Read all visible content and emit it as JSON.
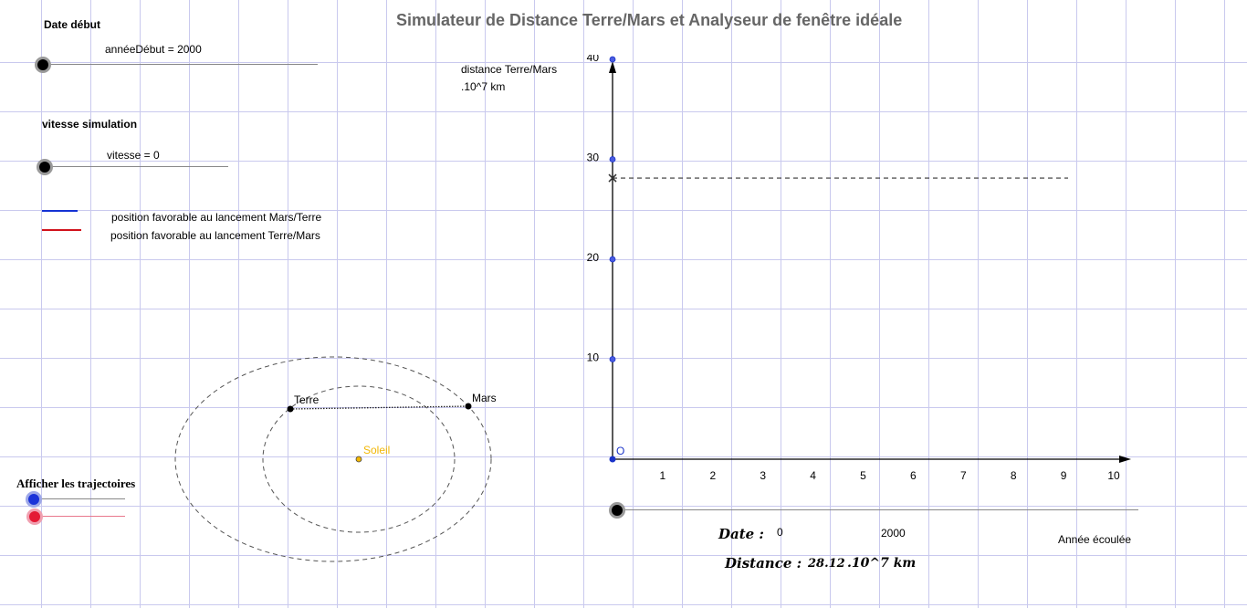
{
  "title": "Simulateur de Distance Terre/Mars et Analyseur de fenêtre idéale",
  "controls": {
    "date_heading": "Date début",
    "year_slider_label": "annéeDébut = 2000",
    "speed_heading": "vitesse simulation",
    "speed_slider_label": "vitesse = 0"
  },
  "legend": {
    "blue_label": "position favorable au lancement Mars/Terre",
    "red_label": "position favorable au lancement Terre/Mars",
    "blue_color": "#1533d4",
    "red_color": "#d1121b"
  },
  "orbits": {
    "earth_label": "Terre",
    "mars_label": "Mars",
    "sun_label": "Soleil",
    "sun_color": "#f2b705",
    "toggle_label": "Afficher les trajectoires"
  },
  "graph": {
    "ylabel_line1": "distance Terre/Mars",
    "ylabel_line2": ".10^7 km",
    "origin_label": "O",
    "xlabel": "Année écoulée",
    "point_color": "#4a5be0"
  },
  "chart_data": {
    "type": "line",
    "xlabel": "Année écoulée",
    "ylabel": "distance Terre/Mars .10^7 km",
    "x_ticks": [
      "1",
      "2",
      "3",
      "4",
      "5",
      "6",
      "7",
      "8",
      "9",
      "10"
    ],
    "y_ticks": [
      "10",
      "20",
      "30",
      "40"
    ],
    "xlim": [
      0,
      10.5
    ],
    "ylim": [
      0,
      41
    ],
    "current_distance": 28.12,
    "series": []
  },
  "readout": {
    "date_label": "Date :",
    "elapsed": "0",
    "year": "2000",
    "distance_label": "Distance :",
    "distance_value": "28.12",
    "distance_unit": ".10^7 km"
  }
}
